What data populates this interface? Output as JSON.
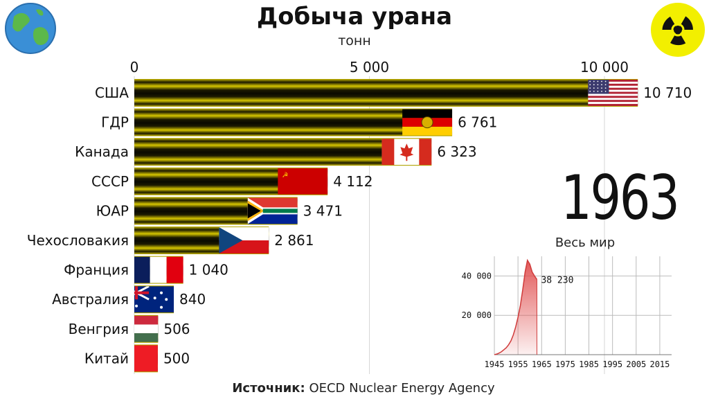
{
  "title": "Добыча урана",
  "subtitle": "тонн",
  "year": "1963",
  "source": {
    "label": "Источник:",
    "text": "OECD Nuclear Energy Agency"
  },
  "colors": {
    "bar_stripe_dark": "#1a1a00",
    "bar_stripe_light": "#d9c800",
    "mini_fill": "#e05050"
  },
  "icons": {
    "left_logo": "globe-icon",
    "right_logo": "radiation-icon"
  },
  "chart_data": [
    {
      "type": "bar",
      "orientation": "horizontal",
      "title": "Добыча урана",
      "subtitle": "тонн",
      "xlim": [
        0,
        10710
      ],
      "x_ticks": [
        0,
        5000,
        10000
      ],
      "x_tick_labels": [
        "0",
        "5 000",
        "10 000"
      ],
      "grid": true,
      "categories": [
        "США",
        "ГДР",
        "Канада",
        "СССР",
        "ЮАР",
        "Чехословакия",
        "Франция",
        "Австралия",
        "Венгрия",
        "Китай"
      ],
      "values": [
        10710,
        6761,
        6323,
        4112,
        3471,
        2861,
        1040,
        840,
        506,
        500
      ],
      "value_labels": [
        "10 710",
        "6 761",
        "6 323",
        "4 112",
        "3 471",
        "2 861",
        "1 040",
        "840",
        "506",
        "500"
      ],
      "flags": [
        "usa",
        "gdr",
        "canada",
        "ussr",
        "rsa",
        "czechoslovakia",
        "france",
        "australia",
        "hungary",
        "china"
      ]
    },
    {
      "type": "area",
      "title": "Весь мир",
      "x_ticks": [
        1945,
        1955,
        1965,
        1975,
        1985,
        1995,
        2005,
        2015
      ],
      "y_ticks": [
        20000,
        40000
      ],
      "y_tick_labels": [
        "20 000",
        "40 000"
      ],
      "xlim": [
        1945,
        2020
      ],
      "ylim": [
        0,
        50000
      ],
      "x": [
        1945,
        1946,
        1947,
        1948,
        1949,
        1950,
        1951,
        1952,
        1953,
        1954,
        1955,
        1956,
        1957,
        1958,
        1959,
        1960,
        1961,
        1962,
        1963
      ],
      "y": [
        0,
        300,
        800,
        1500,
        2500,
        3500,
        5000,
        7000,
        10000,
        14000,
        19000,
        25000,
        33000,
        42000,
        48000,
        46000,
        42000,
        40000,
        38230
      ],
      "last_label": "38 230"
    }
  ]
}
